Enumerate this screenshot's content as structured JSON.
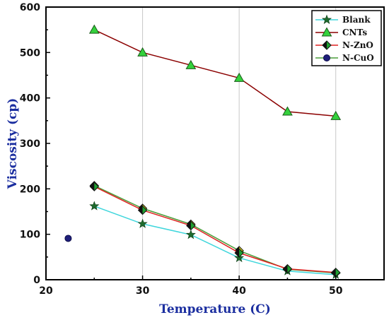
{
  "chart_data": {
    "type": "line",
    "title": "",
    "xlabel": "Temperature (C)",
    "ylabel": "Viscosity (cp)",
    "xlim": [
      20,
      55
    ],
    "ylim": [
      0,
      600
    ],
    "xticks": [
      20,
      30,
      40,
      50
    ],
    "yticks": [
      0,
      100,
      200,
      300,
      400,
      500,
      600
    ],
    "grid": "vertical",
    "legend_position": "top-right",
    "series": [
      {
        "name": "Blank",
        "marker": "star",
        "line_color": "#3fd6dc",
        "marker_color": "#1e6b2e",
        "x": [
          25,
          30,
          35,
          40,
          45,
          50
        ],
        "y": [
          162,
          123,
          99,
          48,
          19,
          11
        ]
      },
      {
        "name": "CNTs",
        "marker": "triangle",
        "line_color": "#8b0000",
        "marker_color": "#34d13c",
        "x": [
          25,
          30,
          35,
          40,
          45,
          50
        ],
        "y": [
          550,
          500,
          472,
          444,
          370,
          360
        ]
      },
      {
        "name": "N-ZnO",
        "marker": "half-diamond",
        "line_color": "#e02020",
        "marker_color": "#20a030",
        "x": [
          25,
          30,
          35,
          40,
          45,
          50
        ],
        "y": [
          205,
          153,
          119,
          59,
          24,
          16
        ]
      },
      {
        "name": "N-CuO",
        "marker": "circle",
        "line_color": "#4a9e3a",
        "marker_color": "#1f1f7a",
        "x": [
          22.3,
          25,
          30,
          35,
          40,
          45,
          50
        ],
        "y": [
          91,
          207,
          157,
          122,
          64,
          23,
          15
        ]
      }
    ]
  }
}
